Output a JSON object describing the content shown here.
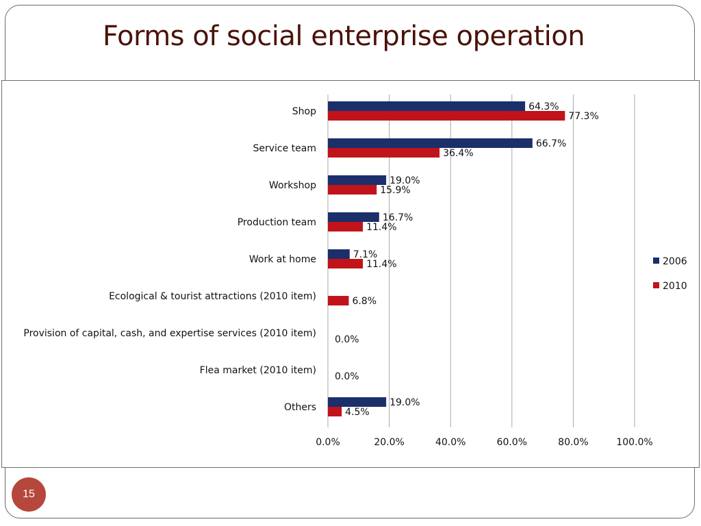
{
  "slide": {
    "title": "Forms of social enterprise operation",
    "page_number": "15"
  },
  "colors": {
    "series_2006": "#1b2f6b",
    "series_2010": "#c0141a",
    "gridline": "#a8a8a8",
    "title": "#4a1208",
    "page_badge": "#b5473d"
  },
  "chart_data": {
    "type": "bar",
    "orientation": "horizontal",
    "categories": [
      "Shop",
      "Service team",
      "Workshop",
      "Production team",
      "Work at home",
      "Ecological & tourist attractions (2010 item)",
      "Provision of capital, cash, and expertise services (2010 item)",
      "Flea market (2010 item)",
      "Others"
    ],
    "series": [
      {
        "name": "2006",
        "values": [
          64.3,
          66.7,
          19.0,
          16.7,
          7.1,
          null,
          null,
          null,
          19.0
        ],
        "labels": [
          "64.3%",
          "66.7%",
          "19.0%",
          "16.7%",
          "7.1%",
          null,
          null,
          null,
          "19.0%"
        ]
      },
      {
        "name": "2010",
        "values": [
          77.3,
          36.4,
          15.9,
          11.4,
          11.4,
          6.8,
          0.0,
          0.0,
          4.5
        ],
        "labels": [
          "77.3%",
          "36.4%",
          "15.9%",
          "11.4%",
          "11.4%",
          "6.8%",
          "0.0%",
          "0.0%",
          "4.5%"
        ]
      }
    ],
    "xlim": [
      0,
      100
    ],
    "xticks": [
      0,
      20,
      40,
      60,
      80,
      100
    ],
    "xtick_labels": [
      "0.0%",
      "20.0%",
      "40.0%",
      "60.0%",
      "80.0%",
      "100.0%"
    ],
    "grid": "vertical",
    "legend_position": "right"
  }
}
